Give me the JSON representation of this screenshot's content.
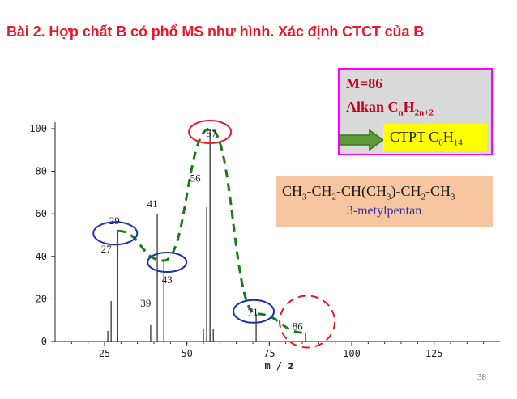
{
  "title": "Bài 2. Hợp chất B có phổ MS như hình. Xác định CTCT của B",
  "info": {
    "mass": "M=86",
    "formula_prefix": "Alkan C",
    "formula_n": "n",
    "formula_h": "H",
    "formula_sub": "2n+2",
    "ctpt_prefix": "CTPT C",
    "ctpt_c": "6",
    "ctpt_h": "H",
    "ctpt_hsub": "14"
  },
  "structure": {
    "parts": [
      "CH",
      "3",
      "-CH",
      "2",
      "-CH(CH",
      "3",
      ")-CH",
      "2",
      "-CH",
      "3"
    ],
    "name": "3-metylpentan"
  },
  "page_number": "38",
  "colors": {
    "title": "#e8192c",
    "dashed_curve": "#1a7a1a",
    "blue_circle": "#1f2fa8",
    "red_circle": "#e81a2a",
    "info_border": "#ff00ff",
    "info_text": "#c0001f",
    "arrow": "#4a8a2a"
  },
  "icons": [
    "right-arrow-icon"
  ],
  "chart_data": {
    "type": "bar",
    "xlabel": "m / z",
    "ylabel": "",
    "xlim": [
      10,
      145
    ],
    "ylim": [
      0,
      100
    ],
    "x_ticks": [
      25,
      50,
      75,
      100,
      125
    ],
    "y_ticks": [
      0,
      20,
      40,
      60,
      80,
      100
    ],
    "peaks": [
      {
        "mz": 26,
        "intensity": 5
      },
      {
        "mz": 27,
        "intensity": 19
      },
      {
        "mz": 29,
        "intensity": 52
      },
      {
        "mz": 39,
        "intensity": 8
      },
      {
        "mz": 41,
        "intensity": 60
      },
      {
        "mz": 43,
        "intensity": 38
      },
      {
        "mz": 55,
        "intensity": 6
      },
      {
        "mz": 56,
        "intensity": 63
      },
      {
        "mz": 57,
        "intensity": 100
      },
      {
        "mz": 58,
        "intensity": 6
      },
      {
        "mz": 71,
        "intensity": 13
      },
      {
        "mz": 86,
        "intensity": 4
      }
    ],
    "peak_labels": [
      {
        "mz": 27,
        "text": "27"
      },
      {
        "mz": 29,
        "text": "29"
      },
      {
        "mz": 39,
        "text": "39"
      },
      {
        "mz": 41,
        "text": "41"
      },
      {
        "mz": 43,
        "text": "43"
      },
      {
        "mz": 56,
        "text": "56"
      },
      {
        "mz": 57,
        "text": "57"
      },
      {
        "mz": 71,
        "text": "71"
      },
      {
        "mz": 86,
        "text": "86"
      }
    ],
    "highlighted_peaks": [
      29,
      43,
      57,
      71,
      86
    ],
    "trend_curve": [
      [
        29,
        52
      ],
      [
        43,
        38
      ],
      [
        57,
        100
      ],
      [
        71,
        13
      ],
      [
        86,
        4
      ]
    ]
  }
}
